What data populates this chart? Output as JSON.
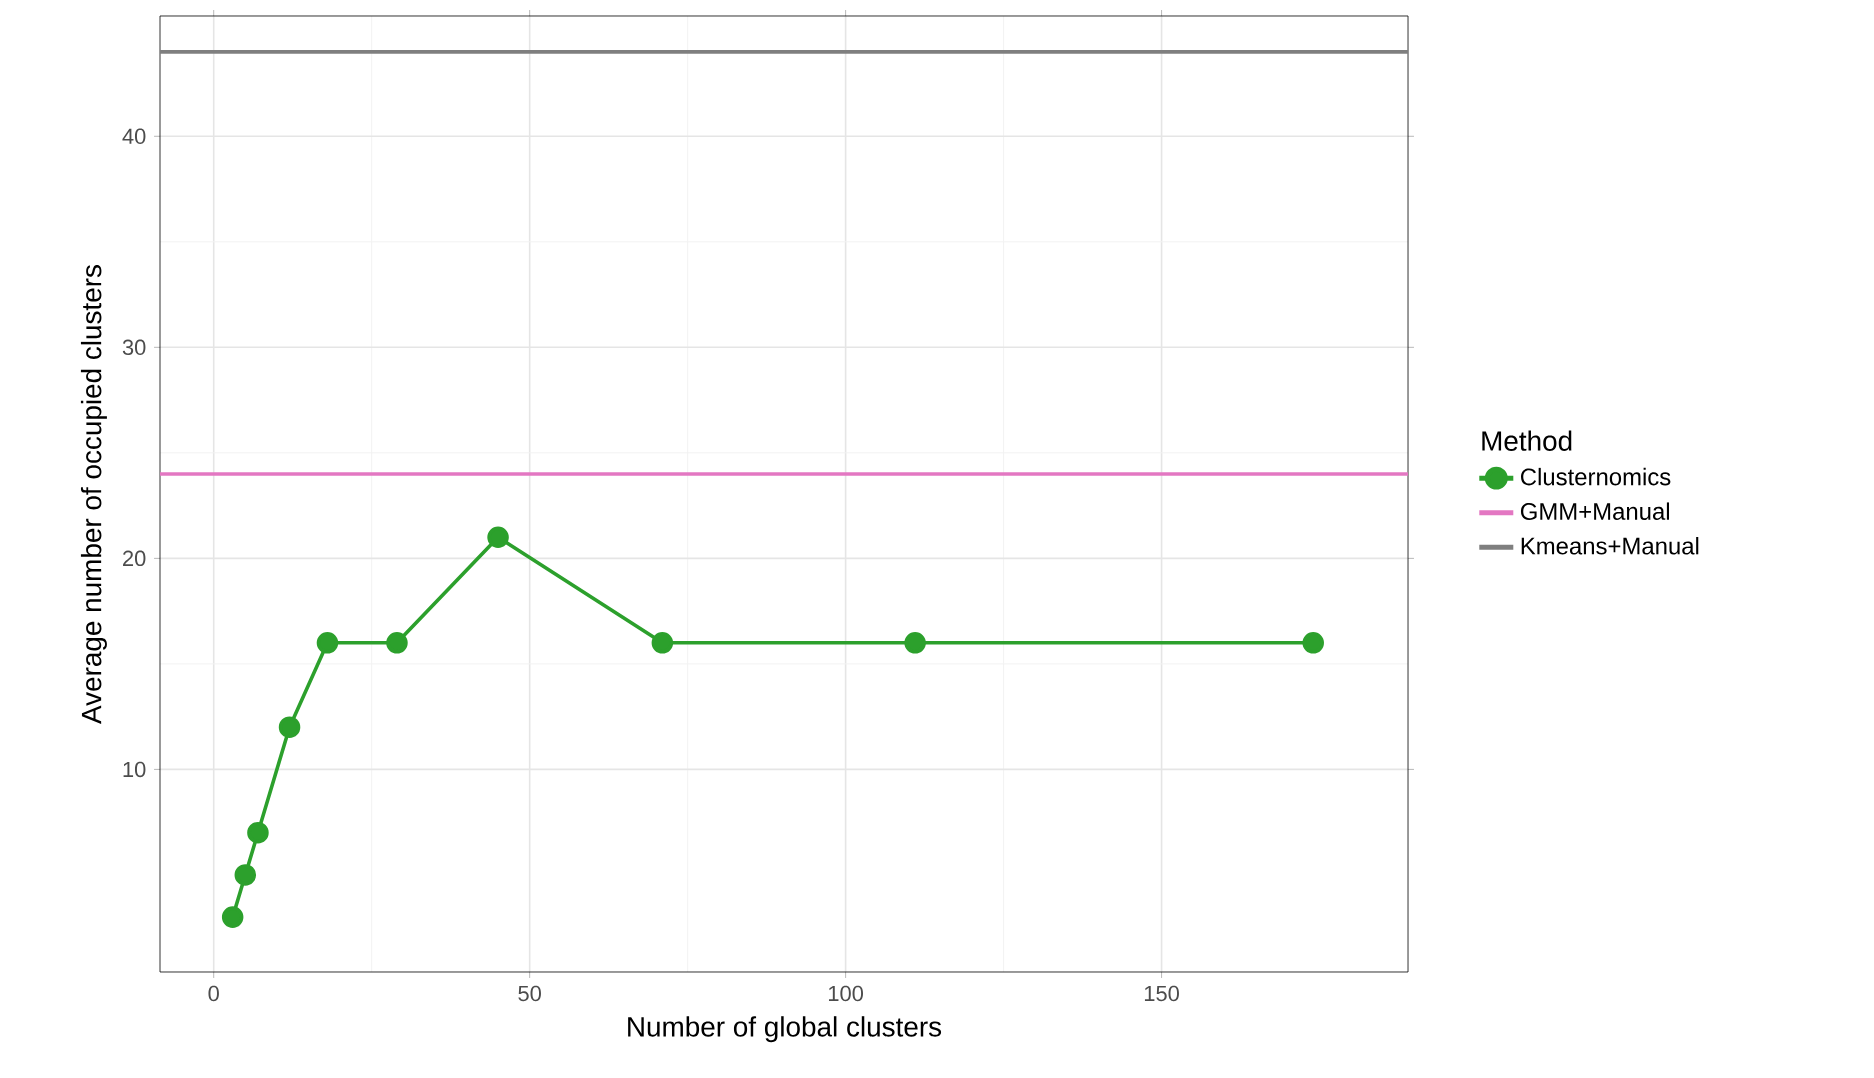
{
  "chart_data": {
    "type": "line",
    "xlabel": "Number of global clusters",
    "ylabel": "Average number of occupied clusters",
    "legend_title": "Method",
    "xlim": [
      -8.5,
      189
    ],
    "ylim": [
      0.4,
      45.7
    ],
    "xticks": [
      0,
      50,
      100,
      150
    ],
    "yticks": [
      10,
      20,
      30,
      40
    ],
    "grid": true,
    "legend": "right",
    "series": [
      {
        "name": "Clusternomics",
        "color": "#2ca02c",
        "marker": "circle",
        "x": [
          3,
          5,
          7,
          12,
          18,
          29,
          45,
          71,
          111,
          174
        ],
        "values": [
          3,
          5,
          7,
          12,
          16,
          16,
          21,
          16,
          16,
          16
        ]
      },
      {
        "name": "GMM+Manual",
        "color": "#e377c2",
        "marker": "none",
        "x": [
          -8.5,
          189
        ],
        "values": [
          24,
          24
        ]
      },
      {
        "name": "Kmeans+Manual",
        "color": "#7f7f7f",
        "marker": "none",
        "x": [
          -8.5,
          189
        ],
        "values": [
          44,
          44
        ]
      }
    ]
  }
}
